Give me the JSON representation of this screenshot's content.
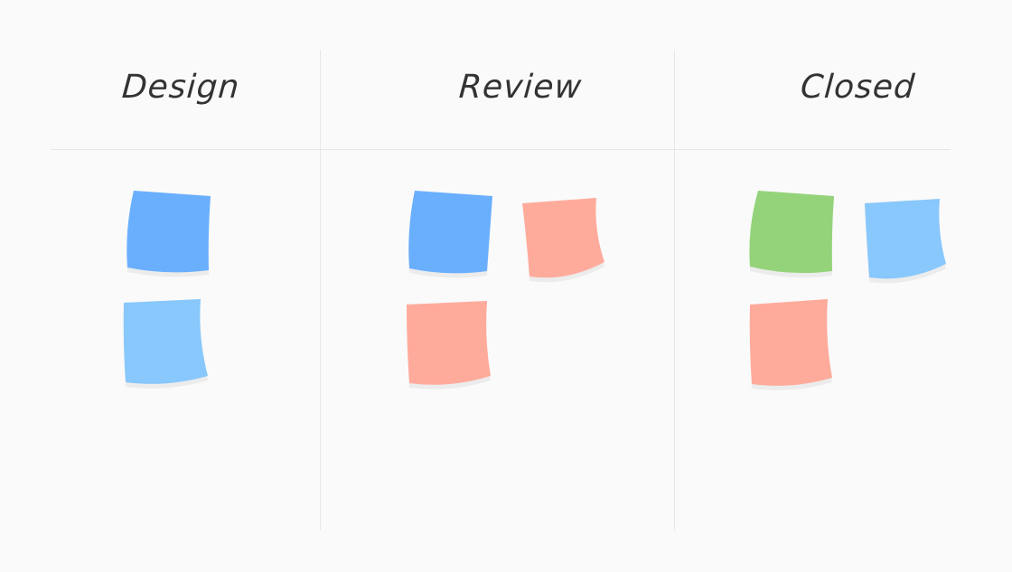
{
  "columns": [
    {
      "title": "Design",
      "notes": [
        "blue",
        "light-blue"
      ]
    },
    {
      "title": "Review",
      "notes": [
        "blue",
        "salmon",
        "salmon"
      ]
    },
    {
      "title": "Closed",
      "notes": [
        "green",
        "light-blue",
        "salmon"
      ]
    }
  ],
  "colors": {
    "blue": "#6aaffe",
    "light-blue": "#88c8fc",
    "salmon": "#ffab9c",
    "green": "#94d37a",
    "background": "#fafafa",
    "divider": "#e6e6e6",
    "shadow": "#ececec"
  }
}
